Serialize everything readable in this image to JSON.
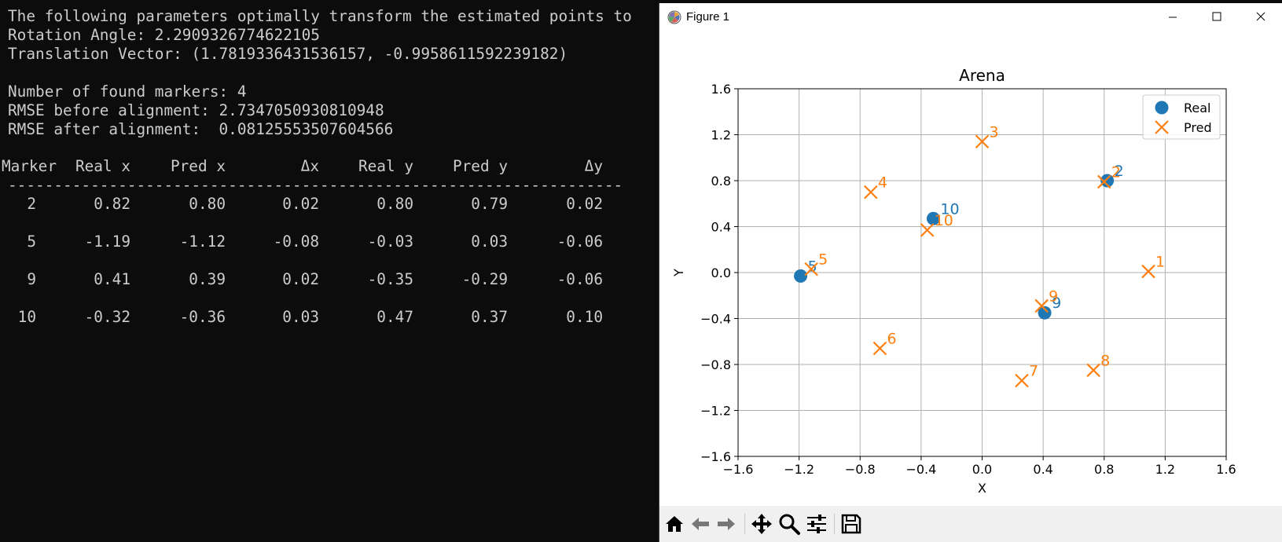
{
  "terminal": {
    "line1": "The following parameters optimally transform the estimated points to",
    "line2": "Rotation Angle: 2.2909326774622105",
    "line3": "Translation Vector: (1.7819336431536157, -0.9958611592239182)",
    "line4": "Number of found markers: 4",
    "line5": "RMSE before alignment: 2.7347050930810948",
    "line6": "RMSE after alignment:  0.08125553507604566",
    "table": {
      "headers": [
        "Marker",
        "Real x",
        "Pred x",
        "Δx",
        "Real y",
        "Pred y",
        "Δy"
      ],
      "separator": "------------------------------------------------------------------------------",
      "rows": [
        [
          "2",
          "0.82",
          "0.80",
          "0.02",
          "0.80",
          "0.79",
          "0.02"
        ],
        [
          "5",
          "-1.19",
          "-1.12",
          "-0.08",
          "-0.03",
          "0.03",
          "-0.06"
        ],
        [
          "9",
          "0.41",
          "0.39",
          "0.02",
          "-0.35",
          "-0.29",
          "-0.06"
        ],
        [
          "10",
          "-0.32",
          "-0.36",
          "0.03",
          "0.47",
          "0.37",
          "0.10"
        ]
      ]
    }
  },
  "window": {
    "title": "Figure 1",
    "icons": [
      "matplotlib-icon",
      "minimize-icon",
      "maximize-icon",
      "close-icon"
    ]
  },
  "toolbar": {
    "buttons": [
      "home-icon",
      "back-arrow-icon",
      "forward-arrow-icon",
      "pan-icon",
      "zoom-icon",
      "configure-subplots-icon",
      "save-icon"
    ]
  },
  "chart_data": {
    "type": "scatter",
    "title": "Arena",
    "xlabel": "X",
    "ylabel": "Y",
    "xlim": [
      -1.6,
      1.6
    ],
    "ylim": [
      -1.6,
      1.6
    ],
    "xticks": [
      "−1.6",
      "−1.2",
      "−0.8",
      "−0.4",
      "0.0",
      "0.4",
      "0.8",
      "1.2",
      "1.6"
    ],
    "yticks": [
      "−1.6",
      "−1.2",
      "−0.8",
      "−0.4",
      "0.0",
      "0.4",
      "0.8",
      "1.2",
      "1.6"
    ],
    "grid": true,
    "legend": "top-right",
    "series": [
      {
        "name": "Real",
        "marker": "circle",
        "color": "#1f77b4",
        "points": [
          {
            "label": "2",
            "x": 0.82,
            "y": 0.8
          },
          {
            "label": "5",
            "x": -1.19,
            "y": -0.03
          },
          {
            "label": "9",
            "x": 0.41,
            "y": -0.35
          },
          {
            "label": "10",
            "x": -0.32,
            "y": 0.47
          }
        ]
      },
      {
        "name": "Pred",
        "marker": "x",
        "color": "#ff7f0e",
        "points": [
          {
            "label": "1",
            "x": 1.09,
            "y": 0.01
          },
          {
            "label": "2",
            "x": 0.8,
            "y": 0.79
          },
          {
            "label": "3",
            "x": 0.0,
            "y": 1.14
          },
          {
            "label": "4",
            "x": -0.73,
            "y": 0.7
          },
          {
            "label": "5",
            "x": -1.12,
            "y": 0.03
          },
          {
            "label": "6",
            "x": -0.67,
            "y": -0.66
          },
          {
            "label": "7",
            "x": 0.26,
            "y": -0.94
          },
          {
            "label": "8",
            "x": 0.73,
            "y": -0.85
          },
          {
            "label": "9",
            "x": 0.39,
            "y": -0.29
          },
          {
            "label": "10",
            "x": -0.36,
            "y": 0.37
          }
        ]
      }
    ]
  }
}
